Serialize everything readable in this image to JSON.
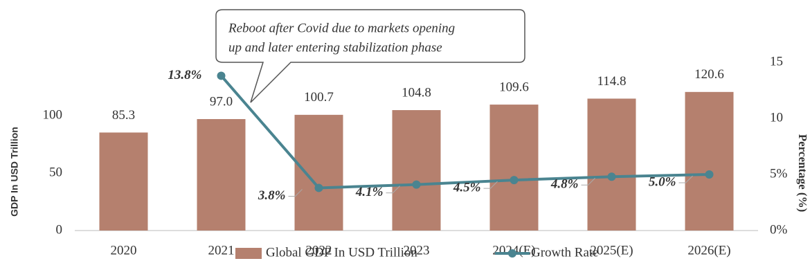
{
  "chart_data": {
    "type": "bar",
    "annotation": [
      "Reboot after Covid due to markets opening",
      "up and later entering stabilization phase"
    ],
    "y_label": "GDP In USD Trillion",
    "y2_label": "Percentage (%)",
    "categories": [
      "2020",
      "2021",
      "2022",
      "2023",
      "2024(E)",
      "2025(E)",
      "2026(E)"
    ],
    "series": [
      {
        "name": "Global GDP In USD Trillion",
        "type": "bar",
        "color": "#b5806e",
        "values": [
          85.3,
          97.0,
          100.7,
          104.8,
          109.6,
          114.8,
          120.6
        ],
        "value_labels": [
          "85.3",
          "97.0",
          "100.7",
          "104.8",
          "109.6",
          "114.8",
          "120.6"
        ]
      },
      {
        "name": "Growth Rate",
        "type": "line",
        "axis": "y2",
        "color": "#4a8490",
        "values": [
          null,
          13.8,
          3.8,
          4.1,
          4.5,
          4.8,
          5.0
        ],
        "value_labels": [
          null,
          "13.8%",
          "3.8%",
          "4.1%",
          "4.5%",
          "4.8%",
          "5.0%"
        ]
      }
    ],
    "ylim": [
      0,
      146.4
    ],
    "yticks": [
      0,
      50,
      100
    ],
    "y2lim": [
      0,
      15
    ],
    "y2ticks": [
      {
        "value": 0,
        "label": "0%"
      },
      {
        "value": 5,
        "label": "5%"
      },
      10,
      15
    ],
    "legend": "bottom"
  }
}
